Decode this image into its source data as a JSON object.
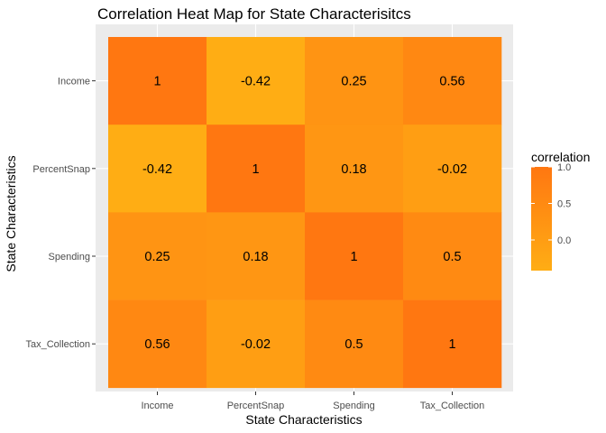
{
  "chart_data": {
    "type": "heatmap",
    "title": "Correlation Heat Map for State Characterisitcs",
    "xlabel": "State Characteristics",
    "ylabel": "State Characteristics",
    "x_categories": [
      "Income",
      "PercentSnap",
      "Spending",
      "Tax_Collection"
    ],
    "y_categories": [
      "Income",
      "PercentSnap",
      "Spending",
      "Tax_Collection"
    ],
    "values": [
      [
        1,
        -0.42,
        0.25,
        0.56
      ],
      [
        -0.42,
        1,
        0.18,
        -0.02
      ],
      [
        0.25,
        0.18,
        1,
        0.5
      ],
      [
        0.56,
        -0.02,
        0.5,
        1
      ]
    ],
    "cell_labels": [
      [
        "1",
        "-0.42",
        "0.25",
        "0.56"
      ],
      [
        "-0.42",
        "1",
        "0.18",
        "-0.02"
      ],
      [
        "0.25",
        "0.18",
        "1",
        "0.5"
      ],
      [
        "0.56",
        "-0.02",
        "0.5",
        "1"
      ]
    ],
    "legend": {
      "title": "correlation",
      "position": "right",
      "range": [
        -0.42,
        1
      ],
      "ticks": [
        1.0,
        0.5,
        0.0
      ],
      "tick_labels": [
        "1.0",
        "0.5",
        "0.0"
      ],
      "low_color": "#FFAD14",
      "high_color": "#FF7711"
    },
    "grid": true,
    "panel_background": "#EBEBEB",
    "grid_color": "#FFFFFF"
  }
}
